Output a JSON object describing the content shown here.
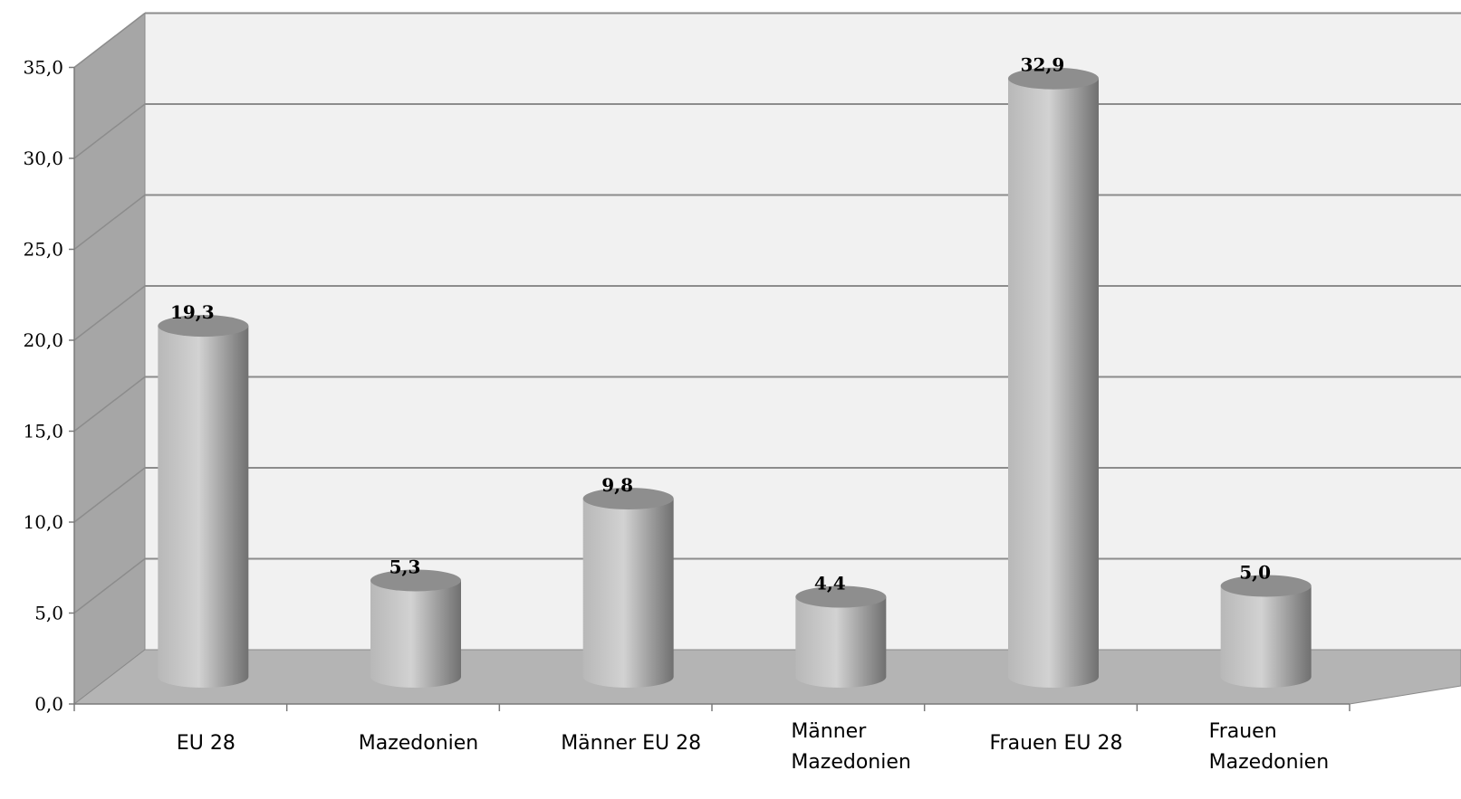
{
  "chart_data": {
    "type": "bar",
    "style": "3d-cylinder",
    "categories": [
      [
        "EU 28"
      ],
      [
        "Mazedonien"
      ],
      [
        "Männer EU 28"
      ],
      [
        "Männer",
        "Mazedonien"
      ],
      [
        "Frauen EU 28"
      ],
      [
        "Frauen",
        "Mazedonien"
      ]
    ],
    "values": [
      19.3,
      5.3,
      9.8,
      4.4,
      32.9,
      5.0
    ],
    "data_labels": [
      "19,3",
      "5,3",
      "9,8",
      "4,4",
      "32,9",
      "5,0"
    ],
    "ylim": [
      0,
      35
    ],
    "yticks": [
      "0,0",
      "5,0",
      "10,0",
      "15,0",
      "20,0",
      "25,0",
      "30,0",
      "35,0"
    ],
    "title": "",
    "xlabel": "",
    "ylabel": "",
    "grid": true,
    "legend": "none",
    "colors": {
      "back_wall": "#f1f1f1",
      "side_wall": "#a6a6a6",
      "floor": "#b4b4b4",
      "gridline": "#8c8c8c",
      "bar_light": "#d2d2d2",
      "bar_mid": "#b8b8b8",
      "bar_dark": "#707070",
      "bar_top": "#8e8e8e"
    }
  }
}
